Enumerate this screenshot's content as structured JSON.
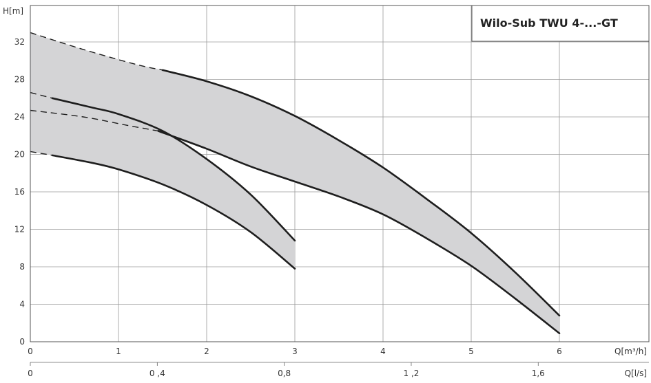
{
  "chart_data": {
    "type": "area",
    "title": "Wilo-Sub TWU 4-...-GT",
    "ylabel": "H[m]",
    "xlabel": "Q[m³/h]",
    "x2label": "Q[l/s]",
    "xlim": [
      0,
      7
    ],
    "ylim": [
      0,
      33
    ],
    "yticks": [
      "0",
      "4",
      "8",
      "12",
      "16",
      "20",
      "24",
      "28",
      "32"
    ],
    "ytick_values": [
      0,
      4,
      8,
      12,
      16,
      20,
      24,
      28,
      32
    ],
    "xticks": [
      "0",
      "1",
      "2",
      "3",
      "4",
      "5",
      "6"
    ],
    "xtick_values": [
      0,
      1,
      2,
      3,
      4,
      5,
      6
    ],
    "x2ticks": [
      "0",
      "0 ,4",
      "0,8",
      "1 ,2",
      "1,6"
    ],
    "x2tick_values": [
      0,
      0.4,
      0.8,
      1.2,
      1.6
    ],
    "grid": true,
    "legend_position": "top-right",
    "fill_color": "#d4d4d6",
    "line_color": "#1e1e1e",
    "bands": [
      {
        "upper": {
          "dashed": [
            [
              0,
              33.0
            ],
            [
              0.6,
              31.2
            ],
            [
              1.2,
              29.6
            ],
            [
              1.5,
              29.0
            ]
          ],
          "solid": [
            [
              1.5,
              29.0
            ],
            [
              2.0,
              27.8
            ],
            [
              2.5,
              26.2
            ],
            [
              3.0,
              24.1
            ],
            [
              3.5,
              21.5
            ],
            [
              4.0,
              18.6
            ],
            [
              4.5,
              15.2
            ],
            [
              5.0,
              11.6
            ],
            [
              5.5,
              7.4
            ],
            [
              6.0,
              2.8
            ]
          ]
        },
        "lower": {
          "dashed": [
            [
              0,
              24.7
            ],
            [
              0.6,
              24.0
            ],
            [
              1.1,
              23.1
            ],
            [
              1.45,
              22.5
            ]
          ],
          "solid": [
            [
              1.45,
              22.5
            ],
            [
              2.0,
              20.6
            ],
            [
              2.5,
              18.7
            ],
            [
              3.0,
              17.1
            ],
            [
              3.5,
              15.5
            ],
            [
              4.0,
              13.6
            ],
            [
              4.5,
              11.0
            ],
            [
              5.0,
              8.1
            ],
            [
              5.5,
              4.6
            ],
            [
              6.0,
              0.9
            ]
          ]
        }
      },
      {
        "upper": {
          "dashed": [
            [
              0,
              26.6
            ],
            [
              0.25,
              26.0
            ]
          ],
          "solid": [
            [
              0.25,
              26.0
            ],
            [
              0.7,
              25.0
            ],
            [
              1.0,
              24.3
            ],
            [
              1.5,
              22.5
            ],
            [
              2.0,
              19.5
            ],
            [
              2.5,
              15.7
            ],
            [
              3.0,
              10.8
            ]
          ]
        },
        "lower": {
          "dashed": [
            [
              0,
              20.3
            ],
            [
              0.25,
              19.9
            ]
          ],
          "solid": [
            [
              0.25,
              19.9
            ],
            [
              0.7,
              19.1
            ],
            [
              1.0,
              18.4
            ],
            [
              1.5,
              16.8
            ],
            [
              2.0,
              14.6
            ],
            [
              2.5,
              11.7
            ],
            [
              3.0,
              7.8
            ]
          ]
        }
      }
    ]
  }
}
